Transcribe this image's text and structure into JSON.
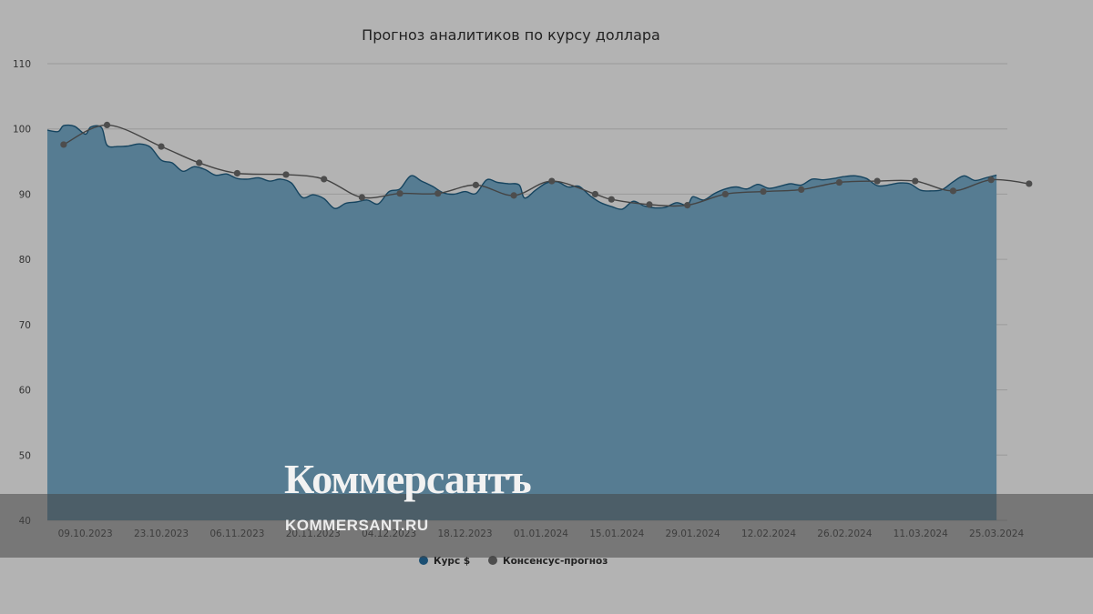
{
  "chart_data": {
    "type": "area",
    "title": "Прогноз аналитиков по курсу доллара",
    "xlabel": "",
    "ylabel": "",
    "ylim": [
      40,
      110
    ],
    "yticks": [
      40,
      50,
      60,
      70,
      80,
      90,
      100,
      110
    ],
    "xticks": [
      "09.10.2023",
      "23.10.2023",
      "06.11.2023",
      "20.11.2023",
      "04.12.2023",
      "18.12.2023",
      "01.01.2024",
      "15.01.2024",
      "29.01.2024",
      "12.02.2024",
      "26.02.2024",
      "11.03.2024",
      "25.03.2024"
    ],
    "x_start": "2023-10-02",
    "x_end": "2024-03-27",
    "grid": true,
    "legend_position": "bottom",
    "series": [
      {
        "name": "Курс $",
        "kind": "area",
        "color": "#1f5b82",
        "points": [
          [
            "2023-10-02",
            99.8
          ],
          [
            "2023-10-04",
            99.6
          ],
          [
            "2023-10-05",
            100.5
          ],
          [
            "2023-10-07",
            100.4
          ],
          [
            "2023-10-09",
            99.2
          ],
          [
            "2023-10-10",
            100.3
          ],
          [
            "2023-10-12",
            100.2
          ],
          [
            "2023-10-13",
            97.5
          ],
          [
            "2023-10-15",
            97.3
          ],
          [
            "2023-10-17",
            97.4
          ],
          [
            "2023-10-19",
            97.7
          ],
          [
            "2023-10-21",
            97.2
          ],
          [
            "2023-10-23",
            95.2
          ],
          [
            "2023-10-25",
            94.8
          ],
          [
            "2023-10-27",
            93.5
          ],
          [
            "2023-10-29",
            94.2
          ],
          [
            "2023-10-31",
            93.8
          ],
          [
            "2023-11-02",
            92.9
          ],
          [
            "2023-11-04",
            93.1
          ],
          [
            "2023-11-06",
            92.4
          ],
          [
            "2023-11-08",
            92.3
          ],
          [
            "2023-11-10",
            92.5
          ],
          [
            "2023-11-12",
            92.0
          ],
          [
            "2023-11-14",
            92.3
          ],
          [
            "2023-11-16",
            91.7
          ],
          [
            "2023-11-18",
            89.5
          ],
          [
            "2023-11-20",
            89.9
          ],
          [
            "2023-11-22",
            89.3
          ],
          [
            "2023-11-24",
            87.8
          ],
          [
            "2023-11-26",
            88.6
          ],
          [
            "2023-11-28",
            88.8
          ],
          [
            "2023-11-30",
            89.1
          ],
          [
            "2023-12-02",
            88.5
          ],
          [
            "2023-12-04",
            90.4
          ],
          [
            "2023-12-06",
            90.8
          ],
          [
            "2023-12-08",
            92.8
          ],
          [
            "2023-12-10",
            92.0
          ],
          [
            "2023-12-12",
            91.2
          ],
          [
            "2023-12-14",
            90.2
          ],
          [
            "2023-12-16",
            90.0
          ],
          [
            "2023-12-18",
            90.4
          ],
          [
            "2023-12-20",
            90.1
          ],
          [
            "2023-12-22",
            92.2
          ],
          [
            "2023-12-24",
            91.8
          ],
          [
            "2023-12-26",
            91.6
          ],
          [
            "2023-12-28",
            91.4
          ],
          [
            "2023-12-29",
            89.4
          ],
          [
            "2023-12-31",
            90.6
          ],
          [
            "2024-01-02",
            91.7
          ],
          [
            "2024-01-04",
            91.9
          ],
          [
            "2024-01-06",
            91.1
          ],
          [
            "2024-01-08",
            91.2
          ],
          [
            "2024-01-10",
            89.8
          ],
          [
            "2024-01-12",
            88.7
          ],
          [
            "2024-01-14",
            88.1
          ],
          [
            "2024-01-16",
            87.7
          ],
          [
            "2024-01-18",
            88.9
          ],
          [
            "2024-01-20",
            88.2
          ],
          [
            "2024-01-22",
            87.9
          ],
          [
            "2024-01-24",
            88.0
          ],
          [
            "2024-01-26",
            88.7
          ],
          [
            "2024-01-28",
            88.3
          ],
          [
            "2024-01-29",
            89.6
          ],
          [
            "2024-01-31",
            89.1
          ],
          [
            "2024-02-02",
            90.1
          ],
          [
            "2024-02-04",
            90.8
          ],
          [
            "2024-02-06",
            91.1
          ],
          [
            "2024-02-08",
            90.8
          ],
          [
            "2024-02-10",
            91.5
          ],
          [
            "2024-02-12",
            90.9
          ],
          [
            "2024-02-14",
            91.2
          ],
          [
            "2024-02-16",
            91.6
          ],
          [
            "2024-02-18",
            91.4
          ],
          [
            "2024-02-20",
            92.3
          ],
          [
            "2024-02-22",
            92.2
          ],
          [
            "2024-02-24",
            92.4
          ],
          [
            "2024-02-26",
            92.7
          ],
          [
            "2024-02-28",
            92.8
          ],
          [
            "2024-03-01",
            92.4
          ],
          [
            "2024-03-03",
            91.3
          ],
          [
            "2024-03-05",
            91.4
          ],
          [
            "2024-03-07",
            91.7
          ],
          [
            "2024-03-09",
            91.6
          ],
          [
            "2024-03-11",
            90.6
          ],
          [
            "2024-03-13",
            90.5
          ],
          [
            "2024-03-15",
            90.7
          ],
          [
            "2024-03-17",
            91.9
          ],
          [
            "2024-03-19",
            92.8
          ],
          [
            "2024-03-21",
            92.1
          ],
          [
            "2024-03-23",
            92.5
          ],
          [
            "2024-03-25",
            92.9
          ]
        ]
      },
      {
        "name": "Консенсус-прогноз",
        "kind": "line",
        "color": "#444444",
        "points": [
          [
            "2023-10-05",
            97.6
          ],
          [
            "2023-10-13",
            100.6
          ],
          [
            "2023-10-23",
            97.3
          ],
          [
            "2023-10-30",
            94.8
          ],
          [
            "2023-11-06",
            93.2
          ],
          [
            "2023-11-15",
            93.0
          ],
          [
            "2023-11-22",
            92.3
          ],
          [
            "2023-11-29",
            89.5
          ],
          [
            "2023-12-06",
            90.1
          ],
          [
            "2023-12-13",
            90.1
          ],
          [
            "2023-12-20",
            91.4
          ],
          [
            "2023-12-27",
            89.8
          ],
          [
            "2024-01-03",
            92.0
          ],
          [
            "2024-01-11",
            90.0
          ],
          [
            "2024-01-14",
            89.2
          ],
          [
            "2024-01-21",
            88.4
          ],
          [
            "2024-01-28",
            88.3
          ],
          [
            "2024-02-04",
            90.0
          ],
          [
            "2024-02-11",
            90.4
          ],
          [
            "2024-02-18",
            90.7
          ],
          [
            "2024-02-25",
            91.8
          ],
          [
            "2024-03-03",
            92.0
          ],
          [
            "2024-03-10",
            92.0
          ],
          [
            "2024-03-17",
            90.5
          ],
          [
            "2024-03-24",
            92.2
          ],
          [
            "2024-03-31",
            91.6
          ]
        ]
      }
    ]
  },
  "brand": {
    "logo_text": "Коммерсантъ",
    "url_text": "KOMMERSANT.RU"
  }
}
